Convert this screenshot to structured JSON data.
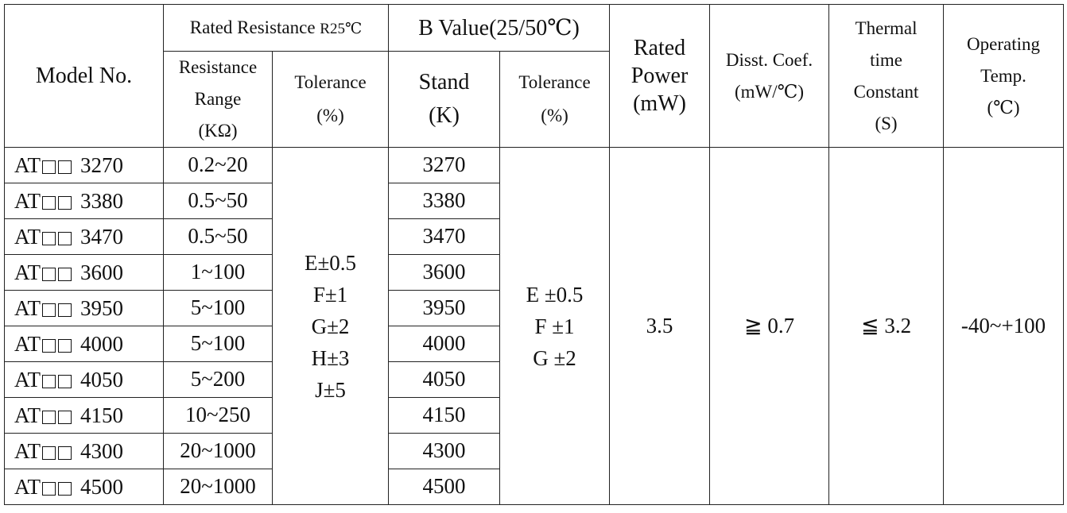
{
  "header": {
    "model_no": "Model No.",
    "rated_resistance": "Rated Resistance ",
    "rated_resistance_suffix": "R25℃",
    "b_value": "B Value(25/50℃)",
    "resistance_range": [
      "Resistance",
      "Range",
      "(KΩ)"
    ],
    "tolerance_r": [
      "Tolerance",
      "(%)"
    ],
    "stand": [
      "Stand",
      "(K)"
    ],
    "tolerance_b": [
      "Tolerance",
      "(%)"
    ],
    "rated_power": [
      "Rated",
      "Power",
      "(mW)"
    ],
    "disst_coef": [
      "Disst. Coef.",
      "(mW/℃)"
    ],
    "thermal_time": [
      "Thermal",
      "time",
      "Constant",
      "(S)"
    ],
    "operating_temp": [
      "Operating",
      "Temp.",
      "(℃)"
    ]
  },
  "rows": [
    {
      "model_prefix": "AT",
      "model_num": "3270",
      "range": "0.2~20",
      "stand": "3270"
    },
    {
      "model_prefix": "AT",
      "model_num": "3380",
      "range": "0.5~50",
      "stand": "3380"
    },
    {
      "model_prefix": "AT",
      "model_num": "3470",
      "range": "0.5~50",
      "stand": "3470"
    },
    {
      "model_prefix": "AT",
      "model_num": "3600",
      "range": "1~100",
      "stand": "3600"
    },
    {
      "model_prefix": "AT",
      "model_num": "3950",
      "range": "5~100",
      "stand": "3950"
    },
    {
      "model_prefix": "AT",
      "model_num": "4000",
      "range": "5~100",
      "stand": "4000"
    },
    {
      "model_prefix": "AT",
      "model_num": "4050",
      "range": "5~200",
      "stand": "4050"
    },
    {
      "model_prefix": "AT",
      "model_num": "4150",
      "range": "10~250",
      "stand": "4150"
    },
    {
      "model_prefix": "AT",
      "model_num": "4300",
      "range": "20~1000",
      "stand": "4300"
    },
    {
      "model_prefix": "AT",
      "model_num": "4500",
      "range": "20~1000",
      "stand": "4500"
    }
  ],
  "shared": {
    "tolerance_r": [
      "E±0.5",
      "F±1",
      "G±2",
      "H±3",
      "J±5"
    ],
    "tolerance_b": [
      "E ±0.5",
      "F ±1",
      "G ±2"
    ],
    "rated_power": "3.5",
    "disst_coef": "≧ 0.7",
    "thermal_time": "≦ 3.2",
    "operating_temp": "-40~+100"
  }
}
